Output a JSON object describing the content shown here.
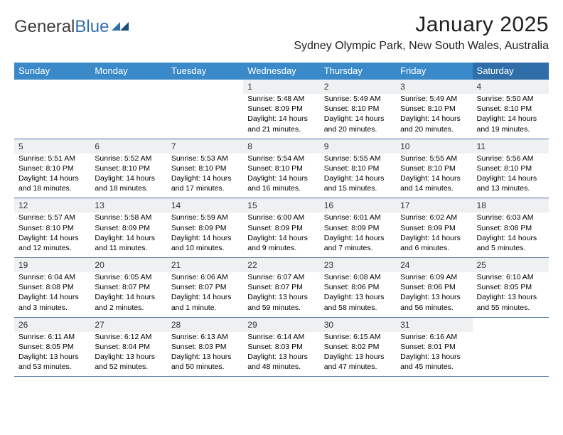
{
  "brand": {
    "part1": "General",
    "part2": "Blue"
  },
  "title": "January 2025",
  "location": "Sydney Olympic Park, New South Wales, Australia",
  "colors": {
    "header_bg": "#3a8ac9",
    "header_bg_last": "#2f6ea9",
    "header_text": "#ffffff",
    "row_shade": "#eef0f2",
    "row_border": "#4a73a0",
    "text": "#000000",
    "brand_gray": "#3e3e3e",
    "brand_blue": "#2f6fb0",
    "background": "#ffffff"
  },
  "typography": {
    "title_fontsize": 30,
    "location_fontsize": 16,
    "dayhead_fontsize": 13,
    "daynum_fontsize": 12,
    "cell_fontsize": 10.5
  },
  "day_names": [
    "Sunday",
    "Monday",
    "Tuesday",
    "Wednesday",
    "Thursday",
    "Friday",
    "Saturday"
  ],
  "weeks": [
    [
      null,
      null,
      null,
      {
        "n": "1",
        "sr": "Sunrise: 5:48 AM",
        "ss": "Sunset: 8:09 PM",
        "d1": "Daylight: 14 hours",
        "d2": "and 21 minutes."
      },
      {
        "n": "2",
        "sr": "Sunrise: 5:49 AM",
        "ss": "Sunset: 8:10 PM",
        "d1": "Daylight: 14 hours",
        "d2": "and 20 minutes."
      },
      {
        "n": "3",
        "sr": "Sunrise: 5:49 AM",
        "ss": "Sunset: 8:10 PM",
        "d1": "Daylight: 14 hours",
        "d2": "and 20 minutes."
      },
      {
        "n": "4",
        "sr": "Sunrise: 5:50 AM",
        "ss": "Sunset: 8:10 PM",
        "d1": "Daylight: 14 hours",
        "d2": "and 19 minutes."
      }
    ],
    [
      {
        "n": "5",
        "sr": "Sunrise: 5:51 AM",
        "ss": "Sunset: 8:10 PM",
        "d1": "Daylight: 14 hours",
        "d2": "and 18 minutes."
      },
      {
        "n": "6",
        "sr": "Sunrise: 5:52 AM",
        "ss": "Sunset: 8:10 PM",
        "d1": "Daylight: 14 hours",
        "d2": "and 18 minutes."
      },
      {
        "n": "7",
        "sr": "Sunrise: 5:53 AM",
        "ss": "Sunset: 8:10 PM",
        "d1": "Daylight: 14 hours",
        "d2": "and 17 minutes."
      },
      {
        "n": "8",
        "sr": "Sunrise: 5:54 AM",
        "ss": "Sunset: 8:10 PM",
        "d1": "Daylight: 14 hours",
        "d2": "and 16 minutes."
      },
      {
        "n": "9",
        "sr": "Sunrise: 5:55 AM",
        "ss": "Sunset: 8:10 PM",
        "d1": "Daylight: 14 hours",
        "d2": "and 15 minutes."
      },
      {
        "n": "10",
        "sr": "Sunrise: 5:55 AM",
        "ss": "Sunset: 8:10 PM",
        "d1": "Daylight: 14 hours",
        "d2": "and 14 minutes."
      },
      {
        "n": "11",
        "sr": "Sunrise: 5:56 AM",
        "ss": "Sunset: 8:10 PM",
        "d1": "Daylight: 14 hours",
        "d2": "and 13 minutes."
      }
    ],
    [
      {
        "n": "12",
        "sr": "Sunrise: 5:57 AM",
        "ss": "Sunset: 8:10 PM",
        "d1": "Daylight: 14 hours",
        "d2": "and 12 minutes."
      },
      {
        "n": "13",
        "sr": "Sunrise: 5:58 AM",
        "ss": "Sunset: 8:09 PM",
        "d1": "Daylight: 14 hours",
        "d2": "and 11 minutes."
      },
      {
        "n": "14",
        "sr": "Sunrise: 5:59 AM",
        "ss": "Sunset: 8:09 PM",
        "d1": "Daylight: 14 hours",
        "d2": "and 10 minutes."
      },
      {
        "n": "15",
        "sr": "Sunrise: 6:00 AM",
        "ss": "Sunset: 8:09 PM",
        "d1": "Daylight: 14 hours",
        "d2": "and 9 minutes."
      },
      {
        "n": "16",
        "sr": "Sunrise: 6:01 AM",
        "ss": "Sunset: 8:09 PM",
        "d1": "Daylight: 14 hours",
        "d2": "and 7 minutes."
      },
      {
        "n": "17",
        "sr": "Sunrise: 6:02 AM",
        "ss": "Sunset: 8:09 PM",
        "d1": "Daylight: 14 hours",
        "d2": "and 6 minutes."
      },
      {
        "n": "18",
        "sr": "Sunrise: 6:03 AM",
        "ss": "Sunset: 8:08 PM",
        "d1": "Daylight: 14 hours",
        "d2": "and 5 minutes."
      }
    ],
    [
      {
        "n": "19",
        "sr": "Sunrise: 6:04 AM",
        "ss": "Sunset: 8:08 PM",
        "d1": "Daylight: 14 hours",
        "d2": "and 3 minutes."
      },
      {
        "n": "20",
        "sr": "Sunrise: 6:05 AM",
        "ss": "Sunset: 8:07 PM",
        "d1": "Daylight: 14 hours",
        "d2": "and 2 minutes."
      },
      {
        "n": "21",
        "sr": "Sunrise: 6:06 AM",
        "ss": "Sunset: 8:07 PM",
        "d1": "Daylight: 14 hours",
        "d2": "and 1 minute."
      },
      {
        "n": "22",
        "sr": "Sunrise: 6:07 AM",
        "ss": "Sunset: 8:07 PM",
        "d1": "Daylight: 13 hours",
        "d2": "and 59 minutes."
      },
      {
        "n": "23",
        "sr": "Sunrise: 6:08 AM",
        "ss": "Sunset: 8:06 PM",
        "d1": "Daylight: 13 hours",
        "d2": "and 58 minutes."
      },
      {
        "n": "24",
        "sr": "Sunrise: 6:09 AM",
        "ss": "Sunset: 8:06 PM",
        "d1": "Daylight: 13 hours",
        "d2": "and 56 minutes."
      },
      {
        "n": "25",
        "sr": "Sunrise: 6:10 AM",
        "ss": "Sunset: 8:05 PM",
        "d1": "Daylight: 13 hours",
        "d2": "and 55 minutes."
      }
    ],
    [
      {
        "n": "26",
        "sr": "Sunrise: 6:11 AM",
        "ss": "Sunset: 8:05 PM",
        "d1": "Daylight: 13 hours",
        "d2": "and 53 minutes."
      },
      {
        "n": "27",
        "sr": "Sunrise: 6:12 AM",
        "ss": "Sunset: 8:04 PM",
        "d1": "Daylight: 13 hours",
        "d2": "and 52 minutes."
      },
      {
        "n": "28",
        "sr": "Sunrise: 6:13 AM",
        "ss": "Sunset: 8:03 PM",
        "d1": "Daylight: 13 hours",
        "d2": "and 50 minutes."
      },
      {
        "n": "29",
        "sr": "Sunrise: 6:14 AM",
        "ss": "Sunset: 8:03 PM",
        "d1": "Daylight: 13 hours",
        "d2": "and 48 minutes."
      },
      {
        "n": "30",
        "sr": "Sunrise: 6:15 AM",
        "ss": "Sunset: 8:02 PM",
        "d1": "Daylight: 13 hours",
        "d2": "and 47 minutes."
      },
      {
        "n": "31",
        "sr": "Sunrise: 6:16 AM",
        "ss": "Sunset: 8:01 PM",
        "d1": "Daylight: 13 hours",
        "d2": "and 45 minutes."
      },
      null
    ]
  ]
}
